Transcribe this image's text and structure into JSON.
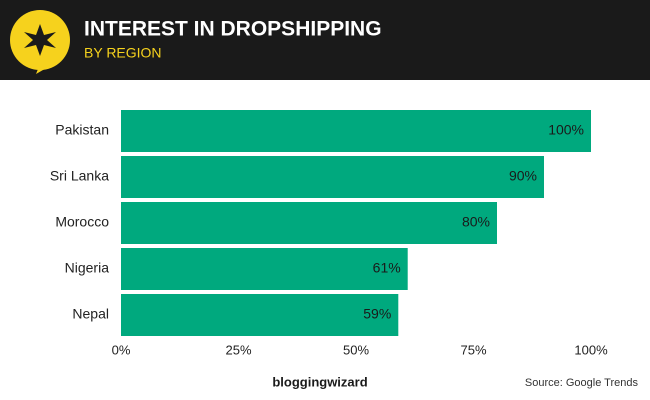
{
  "chart_data": {
    "type": "bar",
    "orientation": "horizontal",
    "title": "INTEREST IN DROPSHIPPING",
    "subtitle": "BY REGION",
    "categories": [
      "Pakistan",
      "Sri Lanka",
      "Morocco",
      "Nigeria",
      "Nepal"
    ],
    "values": [
      100,
      90,
      80,
      61,
      59
    ],
    "value_labels": [
      "100%",
      "90%",
      "80%",
      "61%",
      "59%"
    ],
    "color": "#00a97e",
    "xlim": [
      0,
      100
    ],
    "xticks": [
      {
        "value": 0,
        "label": "0%"
      },
      {
        "value": 25,
        "label": "25%"
      },
      {
        "value": 50,
        "label": "50%"
      },
      {
        "value": 75,
        "label": "75%"
      },
      {
        "value": 100,
        "label": "100%"
      }
    ],
    "grid": false,
    "brand": "bloggingwizard",
    "source": "Source: Google Trends"
  }
}
